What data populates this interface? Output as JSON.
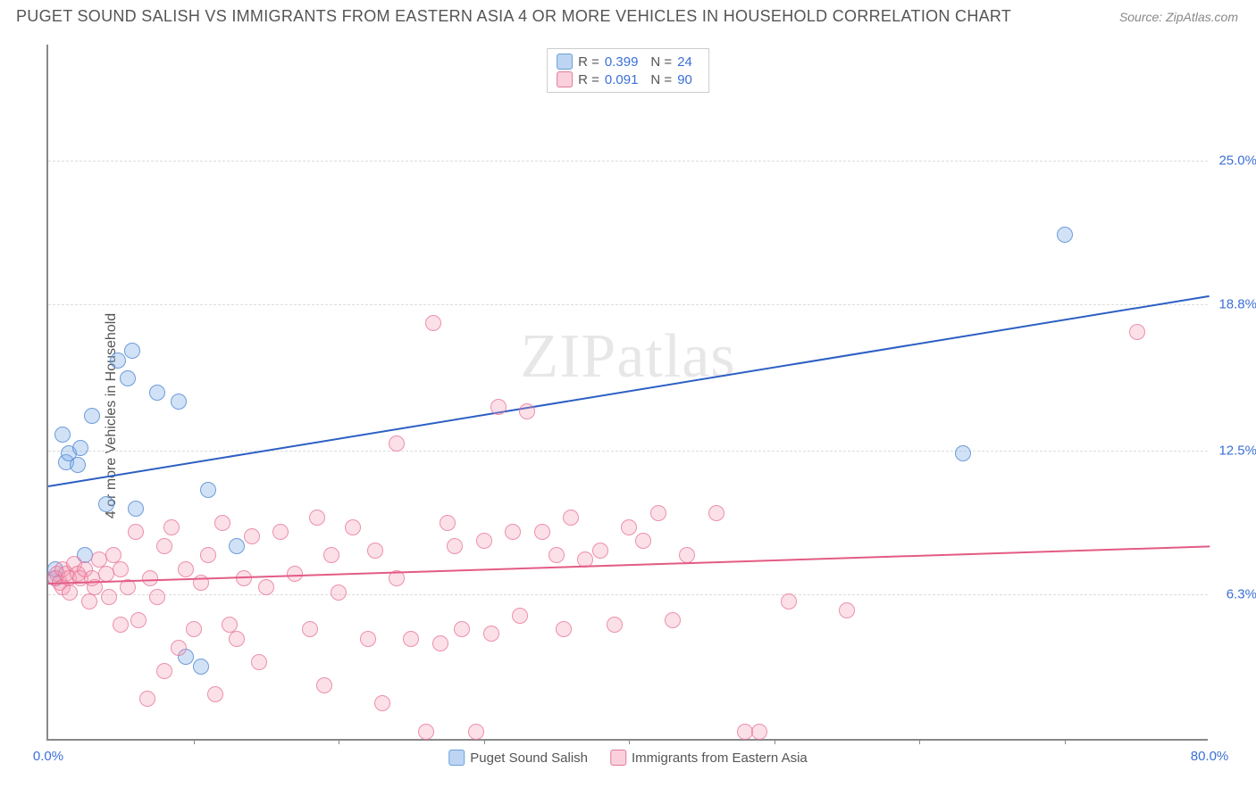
{
  "title": "PUGET SOUND SALISH VS IMMIGRANTS FROM EASTERN ASIA 4 OR MORE VEHICLES IN HOUSEHOLD CORRELATION CHART",
  "source": "Source: ZipAtlas.com",
  "y_axis_label": "4 or more Vehicles in Household",
  "watermark": "ZIPatlas",
  "chart": {
    "type": "scatter",
    "xlim": [
      0,
      80
    ],
    "ylim": [
      0,
      30
    ],
    "x_ticks": [
      {
        "pos": 0,
        "label": "0.0%"
      },
      {
        "pos": 80,
        "label": "80.0%"
      }
    ],
    "x_tick_marks": [
      10,
      20,
      30,
      40,
      50,
      60,
      70
    ],
    "y_ticks": [
      {
        "pos": 6.3,
        "label": "6.3%"
      },
      {
        "pos": 12.5,
        "label": "12.5%"
      },
      {
        "pos": 18.8,
        "label": "18.8%"
      },
      {
        "pos": 25.0,
        "label": "25.0%"
      }
    ],
    "grid_color": "#dddddd",
    "background_color": "#ffffff",
    "axis_color": "#888888"
  },
  "series": [
    {
      "id": "blue",
      "label": "Puget Sound Salish",
      "fill": "rgba(124,172,232,0.35)",
      "stroke": "#568ad2",
      "r_value": "0.399",
      "n_value": "24",
      "trend": {
        "x1": 0,
        "y1": 11.0,
        "x2": 80,
        "y2": 19.2,
        "color": "#2c5fc4",
        "width": 2
      },
      "points": [
        [
          0.5,
          7.0
        ],
        [
          0.5,
          7.4
        ],
        [
          1.0,
          13.2
        ],
        [
          1.2,
          12.0
        ],
        [
          1.4,
          12.4
        ],
        [
          2.0,
          11.9
        ],
        [
          2.2,
          12.6
        ],
        [
          2.5,
          8.0
        ],
        [
          3.0,
          14.0
        ],
        [
          4.0,
          10.2
        ],
        [
          4.8,
          16.4
        ],
        [
          5.5,
          15.6
        ],
        [
          5.8,
          16.8
        ],
        [
          6.0,
          10.0
        ],
        [
          7.5,
          15.0
        ],
        [
          9.0,
          14.6
        ],
        [
          9.5,
          3.6
        ],
        [
          10.5,
          3.2
        ],
        [
          11.0,
          10.8
        ],
        [
          13.0,
          8.4
        ],
        [
          63.0,
          12.4
        ],
        [
          70.0,
          21.8
        ]
      ]
    },
    {
      "id": "pink",
      "label": "Immigrants from Eastern Asia",
      "fill": "rgba(244,151,178,0.3)",
      "stroke": "#e66e91",
      "r_value": "0.091",
      "n_value": "90",
      "trend": {
        "x1": 0,
        "y1": 6.8,
        "x2": 80,
        "y2": 8.4,
        "color": "#e35b84",
        "width": 2
      },
      "points": [
        [
          0.5,
          7.0
        ],
        [
          0.6,
          7.2
        ],
        [
          0.8,
          6.8
        ],
        [
          1.0,
          7.4
        ],
        [
          1.0,
          6.6
        ],
        [
          1.2,
          7.2
        ],
        [
          1.4,
          7.0
        ],
        [
          1.5,
          6.4
        ],
        [
          1.8,
          7.6
        ],
        [
          2.0,
          7.2
        ],
        [
          2.2,
          7.0
        ],
        [
          2.5,
          7.4
        ],
        [
          2.8,
          6.0
        ],
        [
          3.0,
          7.0
        ],
        [
          3.2,
          6.6
        ],
        [
          3.5,
          7.8
        ],
        [
          4.0,
          7.2
        ],
        [
          4.2,
          6.2
        ],
        [
          4.5,
          8.0
        ],
        [
          5.0,
          5.0
        ],
        [
          5.0,
          7.4
        ],
        [
          5.5,
          6.6
        ],
        [
          6.0,
          9.0
        ],
        [
          6.2,
          5.2
        ],
        [
          6.8,
          1.8
        ],
        [
          7.0,
          7.0
        ],
        [
          7.5,
          6.2
        ],
        [
          8.0,
          8.4
        ],
        [
          8.0,
          3.0
        ],
        [
          8.5,
          9.2
        ],
        [
          9.0,
          4.0
        ],
        [
          9.5,
          7.4
        ],
        [
          10.0,
          4.8
        ],
        [
          10.5,
          6.8
        ],
        [
          11.0,
          8.0
        ],
        [
          11.5,
          2.0
        ],
        [
          12.0,
          9.4
        ],
        [
          12.5,
          5.0
        ],
        [
          13.0,
          4.4
        ],
        [
          13.5,
          7.0
        ],
        [
          14.0,
          8.8
        ],
        [
          14.5,
          3.4
        ],
        [
          15.0,
          6.6
        ],
        [
          16.0,
          9.0
        ],
        [
          17.0,
          7.2
        ],
        [
          18.0,
          4.8
        ],
        [
          18.5,
          9.6
        ],
        [
          19.0,
          2.4
        ],
        [
          19.5,
          8.0
        ],
        [
          20.0,
          6.4
        ],
        [
          21.0,
          9.2
        ],
        [
          22.0,
          4.4
        ],
        [
          22.5,
          8.2
        ],
        [
          23.0,
          1.6
        ],
        [
          24.0,
          12.8
        ],
        [
          24.0,
          7.0
        ],
        [
          25.0,
          4.4
        ],
        [
          26.0,
          0.4
        ],
        [
          26.5,
          18.0
        ],
        [
          27.0,
          4.2
        ],
        [
          27.5,
          9.4
        ],
        [
          28.0,
          8.4
        ],
        [
          28.5,
          4.8
        ],
        [
          29.5,
          0.4
        ],
        [
          30.0,
          8.6
        ],
        [
          30.5,
          4.6
        ],
        [
          31.0,
          14.4
        ],
        [
          32.0,
          9.0
        ],
        [
          32.5,
          5.4
        ],
        [
          33.0,
          14.2
        ],
        [
          34.0,
          9.0
        ],
        [
          35.0,
          8.0
        ],
        [
          35.5,
          4.8
        ],
        [
          36.0,
          9.6
        ],
        [
          37.0,
          7.8
        ],
        [
          38.0,
          8.2
        ],
        [
          39.0,
          5.0
        ],
        [
          40.0,
          9.2
        ],
        [
          41.0,
          8.6
        ],
        [
          42.0,
          9.8
        ],
        [
          43.0,
          5.2
        ],
        [
          44.0,
          8.0
        ],
        [
          46.0,
          9.8
        ],
        [
          48.0,
          0.4
        ],
        [
          49.0,
          0.4
        ],
        [
          51.0,
          6.0
        ],
        [
          55.0,
          5.6
        ],
        [
          75.0,
          17.6
        ]
      ]
    }
  ],
  "legend_top": {
    "r_label": "R =",
    "n_label": "N ="
  },
  "legend_bottom": [
    {
      "swatch": "blue",
      "label": "Puget Sound Salish"
    },
    {
      "swatch": "pink",
      "label": "Immigrants from Eastern Asia"
    }
  ]
}
